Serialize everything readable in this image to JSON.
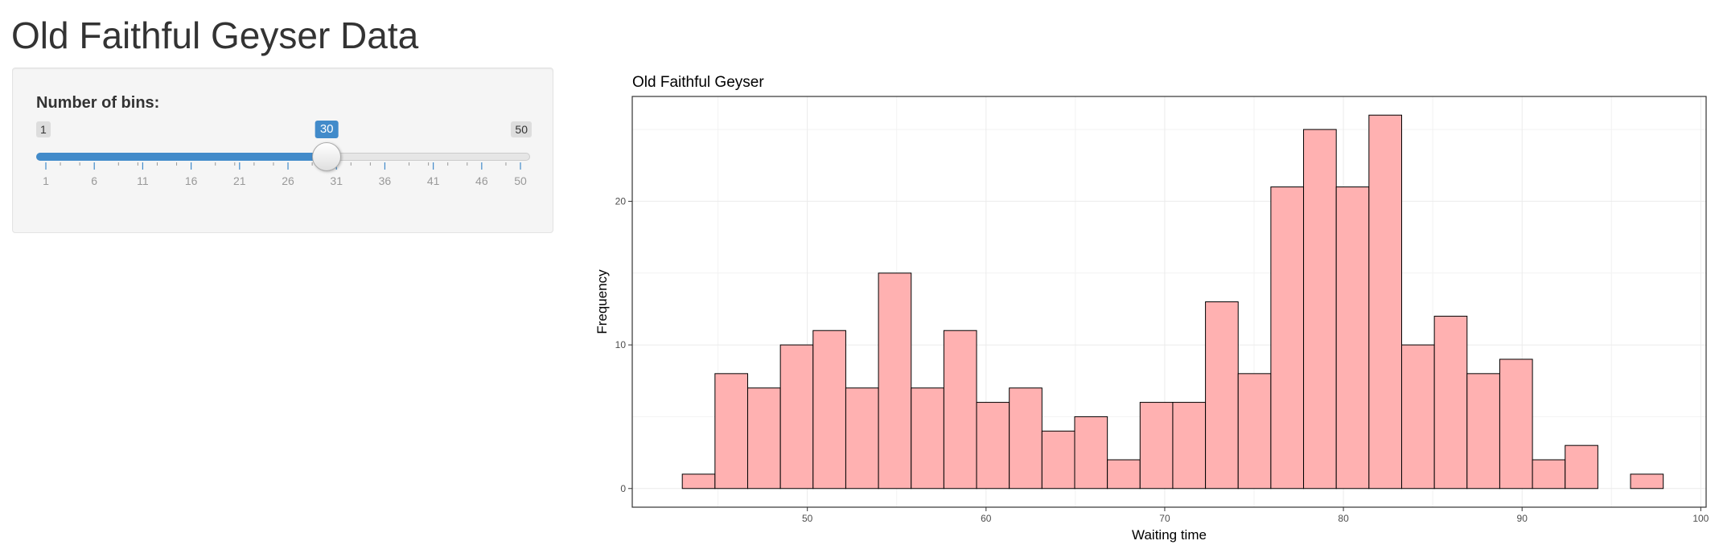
{
  "page": {
    "title": "Old Faithful Geyser Data"
  },
  "sidebar": {
    "bins_label": "Number of bins:",
    "slider": {
      "min": 1,
      "max": 50,
      "value": 30,
      "min_label": "1",
      "max_label": "50",
      "value_label": "30",
      "tick_labels": [
        "1",
        "6",
        "11",
        "16",
        "21",
        "26",
        "31",
        "36",
        "41",
        "46",
        "50"
      ],
      "accent_color": "#428bca"
    }
  },
  "chart_data": {
    "type": "histogram",
    "title": "Old Faithful Geyser",
    "xlabel": "Waiting time",
    "ylabel": "Frequency",
    "xlim": [
      40.2,
      100.3
    ],
    "ylim": [
      -1.3,
      27.3
    ],
    "x_ticks": [
      50,
      60,
      70,
      80,
      90,
      100
    ],
    "y_ticks": [
      0,
      10,
      20
    ],
    "grid": true,
    "bin_start": 43.0,
    "bin_width": 1.83,
    "counts": [
      1,
      8,
      7,
      10,
      11,
      7,
      15,
      7,
      11,
      6,
      7,
      4,
      5,
      2,
      6,
      6,
      13,
      8,
      21,
      25,
      21,
      26,
      10,
      12,
      8,
      9,
      2,
      3,
      0,
      1
    ],
    "fill_color": "#ffb1b1",
    "border_color": "#000000"
  }
}
